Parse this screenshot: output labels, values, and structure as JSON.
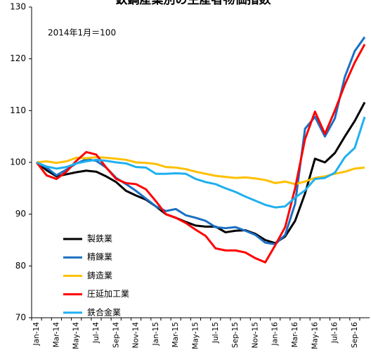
{
  "chart_data": {
    "type": "line",
    "title": "鉄鋼産業別の生産者物価指数",
    "annotation": "2014年1月＝100",
    "categories": [
      "Jan-14",
      null,
      "Mar-14",
      null,
      "May-14",
      null,
      "Jul-14",
      null,
      "Sep-14",
      null,
      "Nov-14",
      null,
      "Jan-15",
      null,
      "Mar-15",
      null,
      "May-15",
      null,
      "Jul-15",
      null,
      "Sep-15",
      null,
      "Nov-15",
      null,
      "Jan-16",
      null,
      "Mar-16",
      null,
      "May-16",
      null,
      "Jul-16",
      null,
      "Sep-16",
      null
    ],
    "series": [
      {
        "name": "製鉄業",
        "color": "#000000",
        "values": [
          100,
          98.5,
          97.3,
          97.7,
          98.1,
          98.4,
          98.2,
          97.3,
          96.2,
          94.5,
          93.6,
          92.8,
          91.5,
          90,
          89.3,
          88.5,
          87.8,
          87.6,
          87.6,
          86.5,
          86.8,
          86.9,
          86.2,
          85,
          84.4,
          85.7,
          88.7,
          94,
          100.7,
          100,
          101.8,
          105,
          108,
          111.6
        ]
      },
      {
        "name": "精錬業",
        "color": "#1a6fc4",
        "values": [
          100,
          99,
          97.5,
          98.6,
          99.8,
          100.6,
          100.3,
          99,
          97,
          95.8,
          94.5,
          93,
          91.5,
          90.6,
          91,
          89.8,
          89.3,
          88.7,
          87.5,
          87.3,
          87.5,
          86.8,
          86,
          84.5,
          84.2,
          86,
          92,
          106.5,
          108.8,
          105,
          108.5,
          116.5,
          121.5,
          124.2
        ]
      },
      {
        "name": "鋳造業",
        "color": "#ffc000",
        "values": [
          100,
          100.2,
          99.9,
          100.2,
          100.9,
          100.8,
          101,
          100.9,
          100.7,
          100.5,
          100,
          99.9,
          99.7,
          99.1,
          99,
          98.7,
          98.2,
          97.8,
          97.4,
          97.2,
          97,
          97.1,
          96.9,
          96.6,
          96,
          96.3,
          95.8,
          96.3,
          97,
          97.3,
          97.8,
          98.2,
          98.8,
          99
        ]
      },
      {
        "name": "圧延加工業",
        "color": "#ff0000",
        "values": [
          100,
          97.5,
          96.8,
          98.2,
          100.3,
          102,
          101.5,
          99,
          96.8,
          96,
          95.8,
          94.8,
          92.5,
          90,
          89.3,
          88.3,
          87,
          85.8,
          83.4,
          83,
          83,
          82.6,
          81.5,
          80.7,
          84,
          87.5,
          95,
          104.5,
          109.8,
          105.5,
          110,
          115,
          119.3,
          122.8
        ]
      },
      {
        "name": "鉄合金業",
        "color": "#1fb0f0",
        "values": [
          100,
          99.2,
          98.8,
          99.1,
          99.8,
          100.2,
          100.5,
          100.3,
          100,
          99.8,
          99.1,
          99,
          97.8,
          97.8,
          97.9,
          97.8,
          96.8,
          96.2,
          95.8,
          95,
          94.3,
          93.4,
          92.6,
          91.8,
          91.3,
          91.5,
          93.2,
          94.6,
          96.8,
          97,
          98,
          101,
          102.8,
          108.8
        ]
      }
    ],
    "ylim": [
      70,
      130
    ],
    "yticks": [
      70,
      80,
      90,
      100,
      110,
      120,
      130
    ],
    "grid": false,
    "legend": "lower left"
  }
}
